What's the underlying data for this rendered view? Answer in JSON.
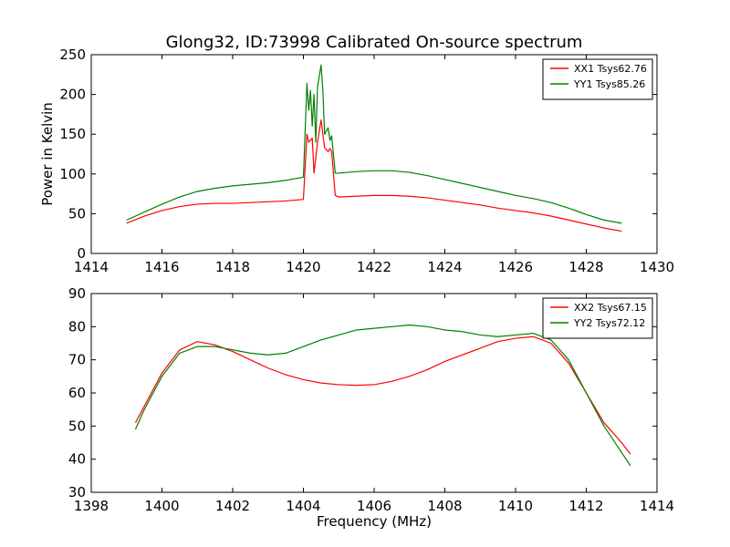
{
  "figure": {
    "title": "Glong32, ID:73998 Calibrated On-source spectrum",
    "xlabel": "Frequency (MHz)",
    "ylabel": "Power in Kelvin"
  },
  "chart_data": [
    {
      "type": "line",
      "xlim": [
        1414,
        1430
      ],
      "ylim": [
        0,
        250
      ],
      "xticks": [
        1414,
        1416,
        1418,
        1420,
        1422,
        1424,
        1426,
        1428,
        1430
      ],
      "yticks": [
        0,
        50,
        100,
        150,
        200,
        250
      ],
      "legend_position": "top-right",
      "grid": false,
      "series": [
        {
          "name": "XX1 Tsys62.76",
          "color": "#ff0000",
          "x": [
            1415.0,
            1415.5,
            1416.0,
            1416.5,
            1417.0,
            1417.5,
            1418.0,
            1418.5,
            1419.0,
            1419.5,
            1420.0,
            1420.1,
            1420.15,
            1420.25,
            1420.3,
            1420.4,
            1420.5,
            1420.55,
            1420.6,
            1420.7,
            1420.75,
            1420.8,
            1420.9,
            1421.0,
            1421.5,
            1422.0,
            1422.5,
            1423.0,
            1423.5,
            1424.0,
            1424.5,
            1425.0,
            1425.5,
            1426.0,
            1426.5,
            1427.0,
            1427.5,
            1428.0,
            1428.5,
            1429.0
          ],
          "y": [
            38,
            47,
            54,
            59,
            62,
            63,
            63,
            64,
            65,
            66,
            68,
            150,
            140,
            145,
            101,
            140,
            168,
            150,
            133,
            128,
            132,
            128,
            73,
            71,
            72,
            73,
            73,
            72,
            70,
            67,
            64,
            61,
            57,
            54,
            51,
            47,
            42,
            37,
            32,
            28
          ]
        },
        {
          "name": "YY1 Tsys85.26",
          "color": "#008000",
          "x": [
            1415.0,
            1415.5,
            1416.0,
            1416.5,
            1417.0,
            1417.5,
            1418.0,
            1418.5,
            1419.0,
            1419.5,
            1420.0,
            1420.1,
            1420.15,
            1420.2,
            1420.25,
            1420.3,
            1420.35,
            1420.4,
            1420.5,
            1420.55,
            1420.6,
            1420.7,
            1420.75,
            1420.8,
            1420.9,
            1421.0,
            1421.5,
            1422.0,
            1422.5,
            1423.0,
            1423.5,
            1424.0,
            1424.5,
            1425.0,
            1425.5,
            1426.0,
            1426.5,
            1427.0,
            1427.5,
            1428.0,
            1428.5,
            1429.0
          ],
          "y": [
            42,
            52,
            62,
            71,
            78,
            82,
            85,
            87,
            89,
            92,
            96,
            214,
            180,
            205,
            160,
            200,
            140,
            210,
            237,
            205,
            150,
            158,
            142,
            148,
            101,
            101,
            103,
            104,
            104,
            102,
            98,
            93,
            88,
            83,
            78,
            73,
            69,
            64,
            57,
            49,
            42,
            38
          ]
        }
      ]
    },
    {
      "type": "line",
      "xlim": [
        1398,
        1414
      ],
      "ylim": [
        30,
        90
      ],
      "xticks": [
        1398,
        1400,
        1402,
        1404,
        1406,
        1408,
        1410,
        1412,
        1414
      ],
      "yticks": [
        30,
        40,
        50,
        60,
        70,
        80,
        90
      ],
      "legend_position": "top-right",
      "grid": false,
      "series": [
        {
          "name": "XX2 Tsys67.15",
          "color": "#ff0000",
          "x": [
            1399.25,
            1399.5,
            1400.0,
            1400.5,
            1401.0,
            1401.5,
            1402.0,
            1402.5,
            1403.0,
            1403.5,
            1404.0,
            1404.5,
            1405.0,
            1405.5,
            1406.0,
            1406.5,
            1407.0,
            1407.5,
            1408.0,
            1408.5,
            1409.0,
            1409.5,
            1410.0,
            1410.5,
            1411.0,
            1411.5,
            1412.0,
            1412.5,
            1413.0,
            1413.25
          ],
          "y": [
            51,
            56,
            66,
            73,
            75.5,
            74.5,
            72.5,
            70,
            67.5,
            65.5,
            64,
            63,
            62.5,
            62.3,
            62.5,
            63.5,
            65,
            67,
            69.5,
            71.5,
            73.5,
            75.5,
            76.5,
            77,
            75,
            69,
            60,
            51,
            45,
            41.5
          ]
        },
        {
          "name": "YY2 Tsys72.12",
          "color": "#008000",
          "x": [
            1399.25,
            1399.5,
            1400.0,
            1400.5,
            1401.0,
            1401.5,
            1402.0,
            1402.5,
            1403.0,
            1403.5,
            1404.0,
            1404.5,
            1405.0,
            1405.5,
            1406.0,
            1406.5,
            1407.0,
            1407.5,
            1408.0,
            1408.5,
            1409.0,
            1409.5,
            1410.0,
            1410.5,
            1411.0,
            1411.5,
            1412.0,
            1412.5,
            1413.0,
            1413.25
          ],
          "y": [
            49,
            55,
            65,
            72,
            74,
            74,
            73,
            72,
            71.5,
            72,
            74,
            76,
            77.5,
            79,
            79.5,
            80,
            80.5,
            80,
            79,
            78.5,
            77.5,
            77,
            77.5,
            78,
            76,
            70,
            60,
            50,
            42,
            38
          ]
        }
      ]
    }
  ]
}
